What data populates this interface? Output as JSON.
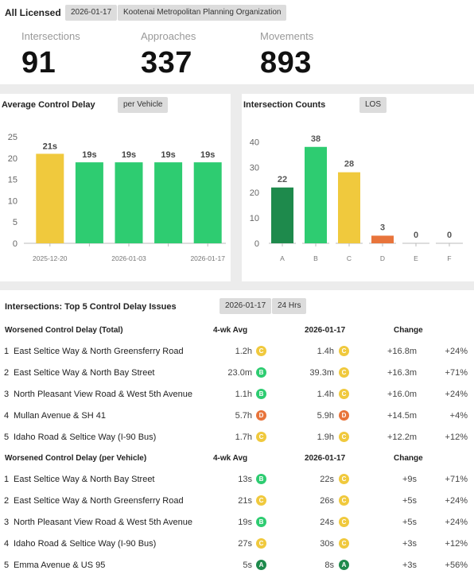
{
  "header": {
    "title": "All Licensed",
    "date": "2026-01-17",
    "org": "Kootenai Metropolitan Planning Organization",
    "kpis": [
      {
        "label": "Intersections",
        "value": "91"
      },
      {
        "label": "Approaches",
        "value": "337"
      },
      {
        "label": "Movements",
        "value": "893"
      }
    ]
  },
  "delay_card": {
    "title": "Average Control Delay",
    "filter": "per Vehicle"
  },
  "counts_card": {
    "title": "Intersection Counts",
    "filter": "LOS"
  },
  "chart_data": [
    {
      "type": "bar",
      "title": "Average Control Delay",
      "categories": [
        "2025-12-20",
        "",
        "2026-01-03",
        "",
        "2026-01-17"
      ],
      "x_tick_labels": [
        "2025-12-20",
        "2026-01-03",
        "2026-01-17"
      ],
      "values": [
        21,
        19,
        19,
        19,
        19
      ],
      "data_labels": [
        "21s",
        "19s",
        "19s",
        "19s",
        "19s"
      ],
      "bar_colors": [
        "#f0c93d",
        "#2ecc71",
        "#2ecc71",
        "#2ecc71",
        "#2ecc71"
      ],
      "ylim": [
        0,
        25
      ],
      "yticks": [
        0,
        5,
        10,
        15,
        20,
        25
      ],
      "grid": false
    },
    {
      "type": "bar",
      "title": "Intersection Counts",
      "categories": [
        "A",
        "B",
        "C",
        "D",
        "E",
        "F"
      ],
      "values": [
        22,
        38,
        28,
        3,
        0,
        0
      ],
      "data_labels": [
        "22",
        "38",
        "28",
        "3",
        "0",
        "0"
      ],
      "bar_colors": [
        "#1e8a4c",
        "#2ecc71",
        "#f0c93d",
        "#e8743b",
        "#999999",
        "#999999"
      ],
      "ylim": [
        0,
        42
      ],
      "yticks": [
        0,
        10,
        20,
        30,
        40
      ],
      "grid": false
    }
  ],
  "table": {
    "title": "Intersections: Top 5 Control Delay Issues",
    "date": "2026-01-17",
    "period": "24 Hrs",
    "los_colors": {
      "A": "#1e8a4c",
      "B": "#2ecc71",
      "C": "#f0c93d",
      "D": "#e8743b"
    },
    "sections": [
      {
        "heading": "Worsened Control Delay (Total)",
        "col_avg": "4-wk Avg",
        "col_date": "2026-01-17",
        "col_change": "Change",
        "rows": [
          {
            "rank": "1",
            "name": "East Seltice Way & North Greensferry Road",
            "avg": "1.2h",
            "avg_los": "C",
            "cur": "1.4h",
            "cur_los": "C",
            "change": "+16.8m",
            "pct": "+24%"
          },
          {
            "rank": "2",
            "name": "East Seltice Way & North Bay Street",
            "avg": "23.0m",
            "avg_los": "B",
            "cur": "39.3m",
            "cur_los": "C",
            "change": "+16.3m",
            "pct": "+71%"
          },
          {
            "rank": "3",
            "name": "North Pleasant View Road & West 5th Avenue",
            "avg": "1.1h",
            "avg_los": "B",
            "cur": "1.4h",
            "cur_los": "C",
            "change": "+16.0m",
            "pct": "+24%"
          },
          {
            "rank": "4",
            "name": "Mullan Avenue & SH 41",
            "avg": "5.7h",
            "avg_los": "D",
            "cur": "5.9h",
            "cur_los": "D",
            "change": "+14.5m",
            "pct": "+4%"
          },
          {
            "rank": "5",
            "name": "Idaho Road & Seltice Way (I-90 Bus)",
            "avg": "1.7h",
            "avg_los": "C",
            "cur": "1.9h",
            "cur_los": "C",
            "change": "+12.2m",
            "pct": "+12%"
          }
        ]
      },
      {
        "heading": "Worsened Control Delay (per Vehicle)",
        "col_avg": "4-wk Avg",
        "col_date": "2026-01-17",
        "col_change": "Change",
        "rows": [
          {
            "rank": "1",
            "name": "East Seltice Way & North Bay Street",
            "avg": "13s",
            "avg_los": "B",
            "cur": "22s",
            "cur_los": "C",
            "change": "+9s",
            "pct": "+71%"
          },
          {
            "rank": "2",
            "name": "East Seltice Way & North Greensferry Road",
            "avg": "21s",
            "avg_los": "C",
            "cur": "26s",
            "cur_los": "C",
            "change": "+5s",
            "pct": "+24%"
          },
          {
            "rank": "3",
            "name": "North Pleasant View Road & West 5th Avenue",
            "avg": "19s",
            "avg_los": "B",
            "cur": "24s",
            "cur_los": "C",
            "change": "+5s",
            "pct": "+24%"
          },
          {
            "rank": "4",
            "name": "Idaho Road & Seltice Way (I-90 Bus)",
            "avg": "27s",
            "avg_los": "C",
            "cur": "30s",
            "cur_los": "C",
            "change": "+3s",
            "pct": "+12%"
          },
          {
            "rank": "5",
            "name": "Emma Avenue & US 95",
            "avg": "5s",
            "avg_los": "A",
            "cur": "8s",
            "cur_los": "A",
            "change": "+3s",
            "pct": "+56%"
          }
        ]
      }
    ]
  }
}
